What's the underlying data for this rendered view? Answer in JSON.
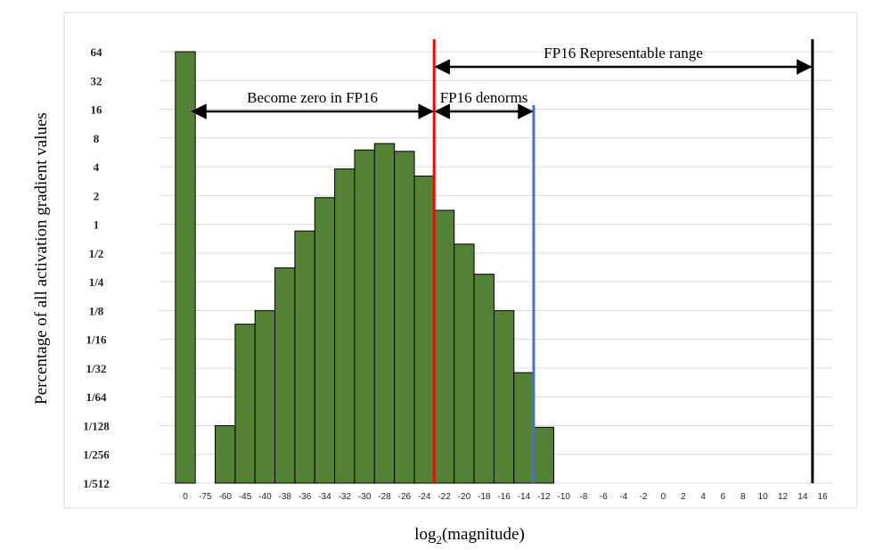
{
  "chart_data": {
    "type": "bar",
    "ylabel": "Percentage of all activation gradient values",
    "xlabel_base": "log",
    "xlabel_sub": "2",
    "xlabel_rest": "(magnitude)",
    "y_scale": "log2",
    "y_ticks": [
      "64",
      "32",
      "16",
      "8",
      "4",
      "2",
      "1",
      "1/2",
      "1/4",
      "1/8",
      "1/16",
      "1/32",
      "1/64",
      "1/128",
      "1/256",
      "1/512"
    ],
    "x_ticks": [
      "0",
      "-75",
      "-60",
      "-45",
      "-40",
      "-38",
      "-36",
      "-34",
      "-32",
      "-30",
      "-28",
      "-26",
      "-24",
      "-22",
      "-20",
      "-18",
      "-16",
      "-14",
      "-12",
      "-10",
      "-8",
      "-6",
      "-4",
      "-2",
      "0",
      "2",
      "4",
      "6",
      "8",
      "10",
      "12",
      "14",
      "16"
    ],
    "grid": true,
    "bar_color": "#548235",
    "bars": [
      {
        "x": "0",
        "value": 64
      },
      {
        "x": "-60",
        "value": 0.0078
      },
      {
        "x": "-45",
        "value": 0.09
      },
      {
        "x": "-40",
        "value": 0.125
      },
      {
        "x": "-38",
        "value": 0.35
      },
      {
        "x": "-36",
        "value": 0.85
      },
      {
        "x": "-34",
        "value": 1.9
      },
      {
        "x": "-32",
        "value": 3.8
      },
      {
        "x": "-30",
        "value": 6.0
      },
      {
        "x": "-28",
        "value": 7.0
      },
      {
        "x": "-26",
        "value": 5.8
      },
      {
        "x": "-24",
        "value": 3.2
      },
      {
        "x": "-22",
        "value": 1.4
      },
      {
        "x": "-20",
        "value": 0.62
      },
      {
        "x": "-18",
        "value": 0.3
      },
      {
        "x": "-16",
        "value": 0.125
      },
      {
        "x": "-14",
        "value": 0.028
      },
      {
        "x": "-12",
        "value": 0.0075
      }
    ],
    "vlines": [
      {
        "at": "-24",
        "color": "#ff0000"
      },
      {
        "at": "-14",
        "color": "#4472c4"
      },
      {
        "at": "14",
        "color": "#000000"
      }
    ],
    "annotations": [
      {
        "label": "Become zero in FP16",
        "from": "0",
        "to": "-24",
        "level": "16"
      },
      {
        "label": "FP16 denorms",
        "from": "-24",
        "to": "-14",
        "level": "16"
      },
      {
        "label": "FP16 Representable range",
        "from": "-24",
        "to": "14",
        "level": "above 64"
      }
    ]
  }
}
